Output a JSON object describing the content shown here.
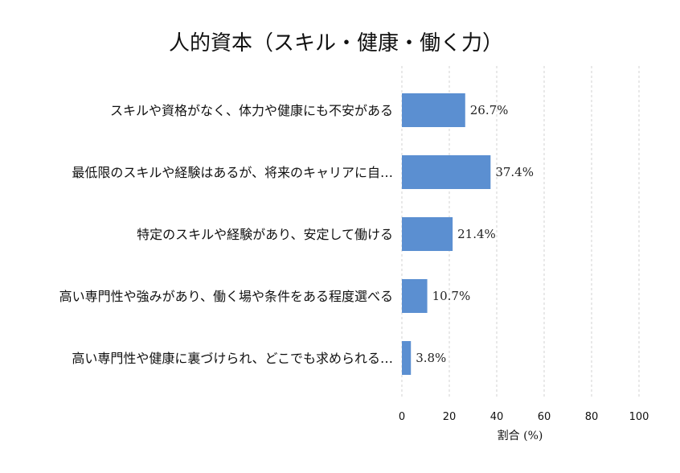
{
  "chart_data": {
    "type": "bar",
    "orientation": "horizontal",
    "title": "人的資本（スキル・健康・働く力）",
    "xlabel": "割合 (%)",
    "ylabel": "",
    "xlim": [
      0,
      100
    ],
    "xticks": [
      "0",
      "20",
      "40",
      "60",
      "80",
      "100"
    ],
    "grid": true,
    "legend": "none",
    "bar_color": "#5b8fd1",
    "categories": [
      "スキルや資格がなく、体力や健康にも不安がある",
      "最低限のスキルや経験はあるが、将来のキャリアに自…",
      "特定のスキルや経験があり、安定して働ける",
      "高い専門性や強みがあり、働く場や条件をある程度選べる",
      "高い専門性や健康に裏づけられ、どこでも求められる…"
    ],
    "values": [
      26.7,
      37.4,
      21.4,
      10.7,
      3.8
    ],
    "value_labels": [
      "26.7%",
      "37.4%",
      "21.4%",
      "10.7%",
      "3.8%"
    ]
  }
}
